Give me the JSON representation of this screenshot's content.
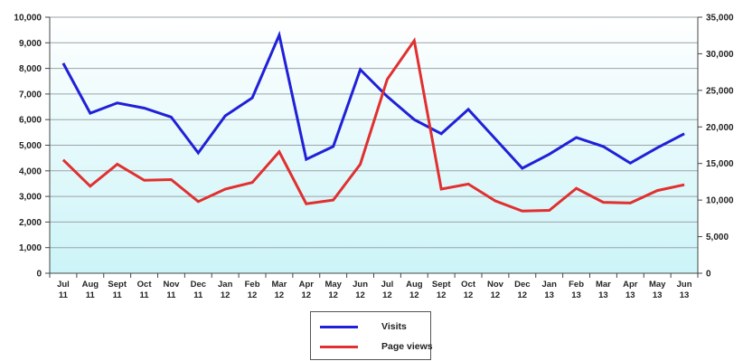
{
  "chart_data": {
    "type": "line",
    "categories": [
      [
        "Jul",
        "11"
      ],
      [
        "Aug",
        "11"
      ],
      [
        "Sept",
        "11"
      ],
      [
        "Oct",
        "11"
      ],
      [
        "Nov",
        "11"
      ],
      [
        "Dec",
        "11"
      ],
      [
        "Jan",
        "12"
      ],
      [
        "Feb",
        "12"
      ],
      [
        "Mar",
        "12"
      ],
      [
        "Apr",
        "12"
      ],
      [
        "May",
        "12"
      ],
      [
        "Jun",
        "12"
      ],
      [
        "Jul",
        "12"
      ],
      [
        "Aug",
        "12"
      ],
      [
        "Sept",
        "12"
      ],
      [
        "Oct",
        "12"
      ],
      [
        "Nov",
        "12"
      ],
      [
        "Dec",
        "12"
      ],
      [
        "Jan",
        "13"
      ],
      [
        "Feb",
        "13"
      ],
      [
        "Mar",
        "13"
      ],
      [
        "Apr",
        "13"
      ],
      [
        "May",
        "13"
      ],
      [
        "Jun",
        "13"
      ]
    ],
    "series": [
      {
        "name": "Visits",
        "axis": "left",
        "color": "#2020d8",
        "values": [
          8200,
          6250,
          6650,
          6450,
          6100,
          4700,
          6150,
          6850,
          9300,
          4450,
          4950,
          7950,
          6900,
          6000,
          5450,
          6400,
          5250,
          4100,
          4650,
          5300,
          4950,
          4300,
          4900,
          5450
        ]
      },
      {
        "name": "Page views",
        "axis": "right",
        "color": "#e03030",
        "values": [
          15500,
          11900,
          14900,
          12700,
          12800,
          9800,
          11500,
          12400,
          16600,
          9500,
          10000,
          14900,
          26500,
          31800,
          11500,
          12200,
          9900,
          8500,
          8600,
          11600,
          9700,
          9600,
          11300,
          12100
        ]
      }
    ],
    "y_left": {
      "ticks": [
        0,
        1000,
        2000,
        3000,
        4000,
        5000,
        6000,
        7000,
        8000,
        9000,
        10000
      ],
      "tick_labels": [
        "0",
        "1,000",
        "2,000",
        "3,000",
        "4,000",
        "5,000",
        "6,000",
        "7,000",
        "8,000",
        "9,000",
        "10,000"
      ],
      "ylim": [
        0,
        10000
      ]
    },
    "y_right": {
      "ticks": [
        0,
        5000,
        10000,
        15000,
        20000,
        25000,
        30000,
        35000
      ],
      "tick_labels": [
        "0",
        "5,000",
        "10,000",
        "15,000",
        "20,000",
        "25,000",
        "30,000",
        "35,000"
      ],
      "ylim": [
        0,
        35000
      ]
    },
    "grid": true,
    "legend": "bottom-center",
    "plot_background": [
      "#ffffff",
      "#ccf4f8"
    ]
  },
  "legend": {
    "items": [
      {
        "label": "Visits",
        "color": "#2020d8"
      },
      {
        "label": "Page views",
        "color": "#e03030"
      }
    ]
  }
}
